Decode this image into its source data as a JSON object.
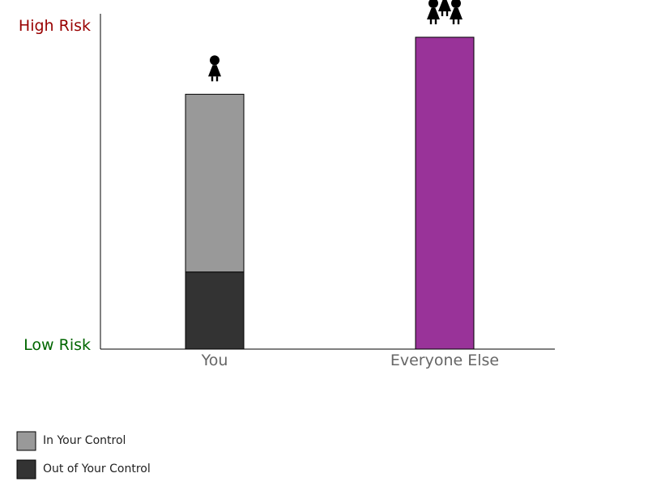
{
  "chart_data": {
    "type": "bar",
    "stacked": true,
    "categories": [
      "You",
      "Everyone Else"
    ],
    "series": [
      {
        "name": "Out of Your Control",
        "values": [
          23,
          0
        ],
        "color": "#333333"
      },
      {
        "name": "In Your Control",
        "values": [
          53,
          0
        ],
        "color": "#999999"
      },
      {
        "name": "",
        "values": [
          0,
          93
        ],
        "color": "#993399"
      }
    ],
    "ylim": [
      0,
      100
    ],
    "y_high_label": "High Risk",
    "y_low_label": "Low Risk",
    "y_high_color": "#990000",
    "y_low_color": "#006600",
    "icons": [
      "person-icon",
      "group-icon"
    ],
    "legend": [
      {
        "label": "In Your Control",
        "color": "#999999"
      },
      {
        "label": "Out of Your Control",
        "color": "#333333"
      }
    ],
    "legend_position": "bottom-left",
    "grid": false
  }
}
